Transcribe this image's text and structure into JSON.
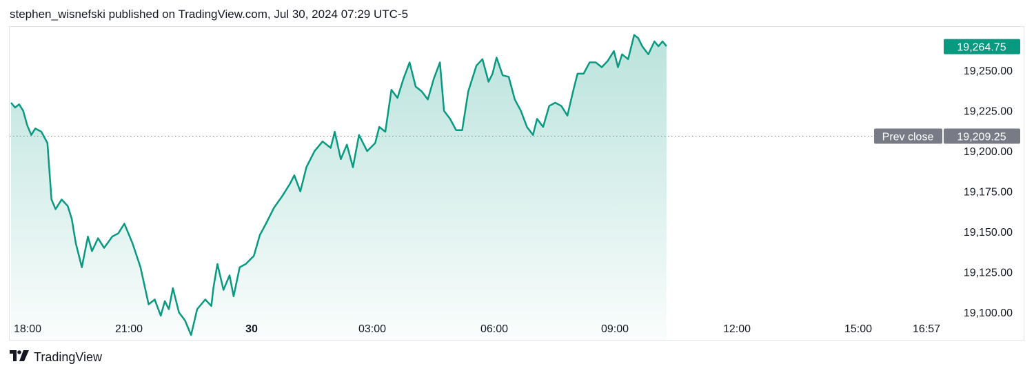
{
  "header": {
    "published_text": "stephen_wisnefski published on TradingView.com, Jul 30, 2024 07:29 UTC-5"
  },
  "footer": {
    "brand": "TradingView",
    "logo_icon": "tradingview-logo-icon"
  },
  "colors": {
    "line": "#089981",
    "fill_top": "rgba(8,153,129,0.28)",
    "fill_bottom": "rgba(8,153,129,0.02)",
    "prev_close_badge": "#787b86",
    "last_price_badge": "#089981"
  },
  "chart_data": {
    "type": "area",
    "time_zone": "UTC-5",
    "x_ticks": [
      {
        "label": "18:00",
        "bold": false
      },
      {
        "label": "21:00",
        "bold": false
      },
      {
        "label": "30",
        "bold": true
      },
      {
        "label": "03:00",
        "bold": false
      },
      {
        "label": "06:00",
        "bold": false
      },
      {
        "label": "09:00",
        "bold": false
      },
      {
        "label": "12:00",
        "bold": false
      },
      {
        "label": "15:00",
        "bold": false
      },
      {
        "label": "16:57",
        "bold": false
      }
    ],
    "y_ticks": [
      "19,100.00",
      "19,125.00",
      "19,150.00",
      "19,175.00",
      "19,200.00",
      "19,225.00",
      "19,250.00"
    ],
    "ylim": [
      19083,
      19277
    ],
    "prev_close": {
      "label": "Prev close",
      "value": 19209.25,
      "value_label": "19,209.25"
    },
    "last_price": {
      "value": 19264.75,
      "value_label": "19,264.75"
    },
    "series": [
      {
        "x": [
          18.0,
          18.1,
          18.2,
          18.3,
          18.4,
          18.5,
          18.6,
          18.75,
          18.9,
          19.0,
          19.1,
          19.25,
          19.4,
          19.5,
          19.6,
          19.75,
          19.9,
          20.0,
          20.15,
          20.3,
          20.5,
          20.65,
          20.8,
          21.0,
          21.2,
          21.4,
          21.55,
          21.7,
          21.8,
          21.9,
          22.0,
          22.15,
          22.3,
          22.45,
          22.6,
          22.8,
          22.95,
          23.0,
          23.1,
          23.25,
          23.4,
          23.5,
          23.65,
          23.8,
          24.0,
          24.15,
          24.3,
          24.5,
          24.7,
          24.9,
          25.0,
          25.15,
          25.3,
          25.5,
          25.7,
          25.9,
          26.0,
          26.15,
          26.3,
          26.45,
          26.6,
          26.8,
          27.0,
          27.1,
          27.25,
          27.4,
          27.55,
          27.7,
          27.85,
          28.0,
          28.15,
          28.3,
          28.45,
          28.6,
          28.7,
          28.85,
          29.0,
          29.15,
          29.3,
          29.5,
          29.65,
          29.8,
          29.9,
          30.0,
          30.15,
          30.3,
          30.45,
          30.6,
          30.75,
          30.9,
          31.0,
          31.15,
          31.3,
          31.45,
          31.6,
          31.75,
          31.9,
          32.0,
          32.15,
          32.3,
          32.45,
          32.6,
          32.75,
          32.9,
          33.0,
          33.1,
          33.25,
          33.4,
          33.5,
          33.6,
          33.75,
          33.9,
          34.0,
          34.1,
          34.2
        ],
        "y": [
          19230,
          19227,
          19229,
          19225,
          19216,
          19210,
          19214,
          19212,
          19205,
          19170,
          19164,
          19170,
          19166,
          19158,
          19143,
          19128,
          19147,
          19138,
          19146,
          19140,
          19147,
          19149,
          19155,
          19143,
          19128,
          19105,
          19108,
          19098,
          19107,
          19102,
          19115,
          19100,
          19095,
          19086,
          19102,
          19108,
          19104,
          19115,
          19130,
          19114,
          19123,
          19110,
          19128,
          19130,
          19135,
          19148,
          19155,
          19165,
          19172,
          19180,
          19185,
          19175,
          19190,
          19200,
          19206,
          19202,
          19212,
          19195,
          19204,
          19190,
          19210,
          19200,
          19205,
          19215,
          19212,
          19238,
          19233,
          19245,
          19255,
          19240,
          19237,
          19232,
          19245,
          19255,
          19225,
          19220,
          19213,
          19213,
          19237,
          19253,
          19257,
          19243,
          19248,
          19258,
          19247,
          19246,
          19232,
          19225,
          19215,
          19210,
          19220,
          19215,
          19228,
          19230,
          19228,
          19222,
          19238,
          19248,
          19248,
          19255,
          19255,
          19252,
          19256,
          19262,
          19252,
          19260,
          19257,
          19272,
          19270,
          19265,
          19260,
          19268,
          19265,
          19268,
          19265
        ]
      }
    ]
  }
}
